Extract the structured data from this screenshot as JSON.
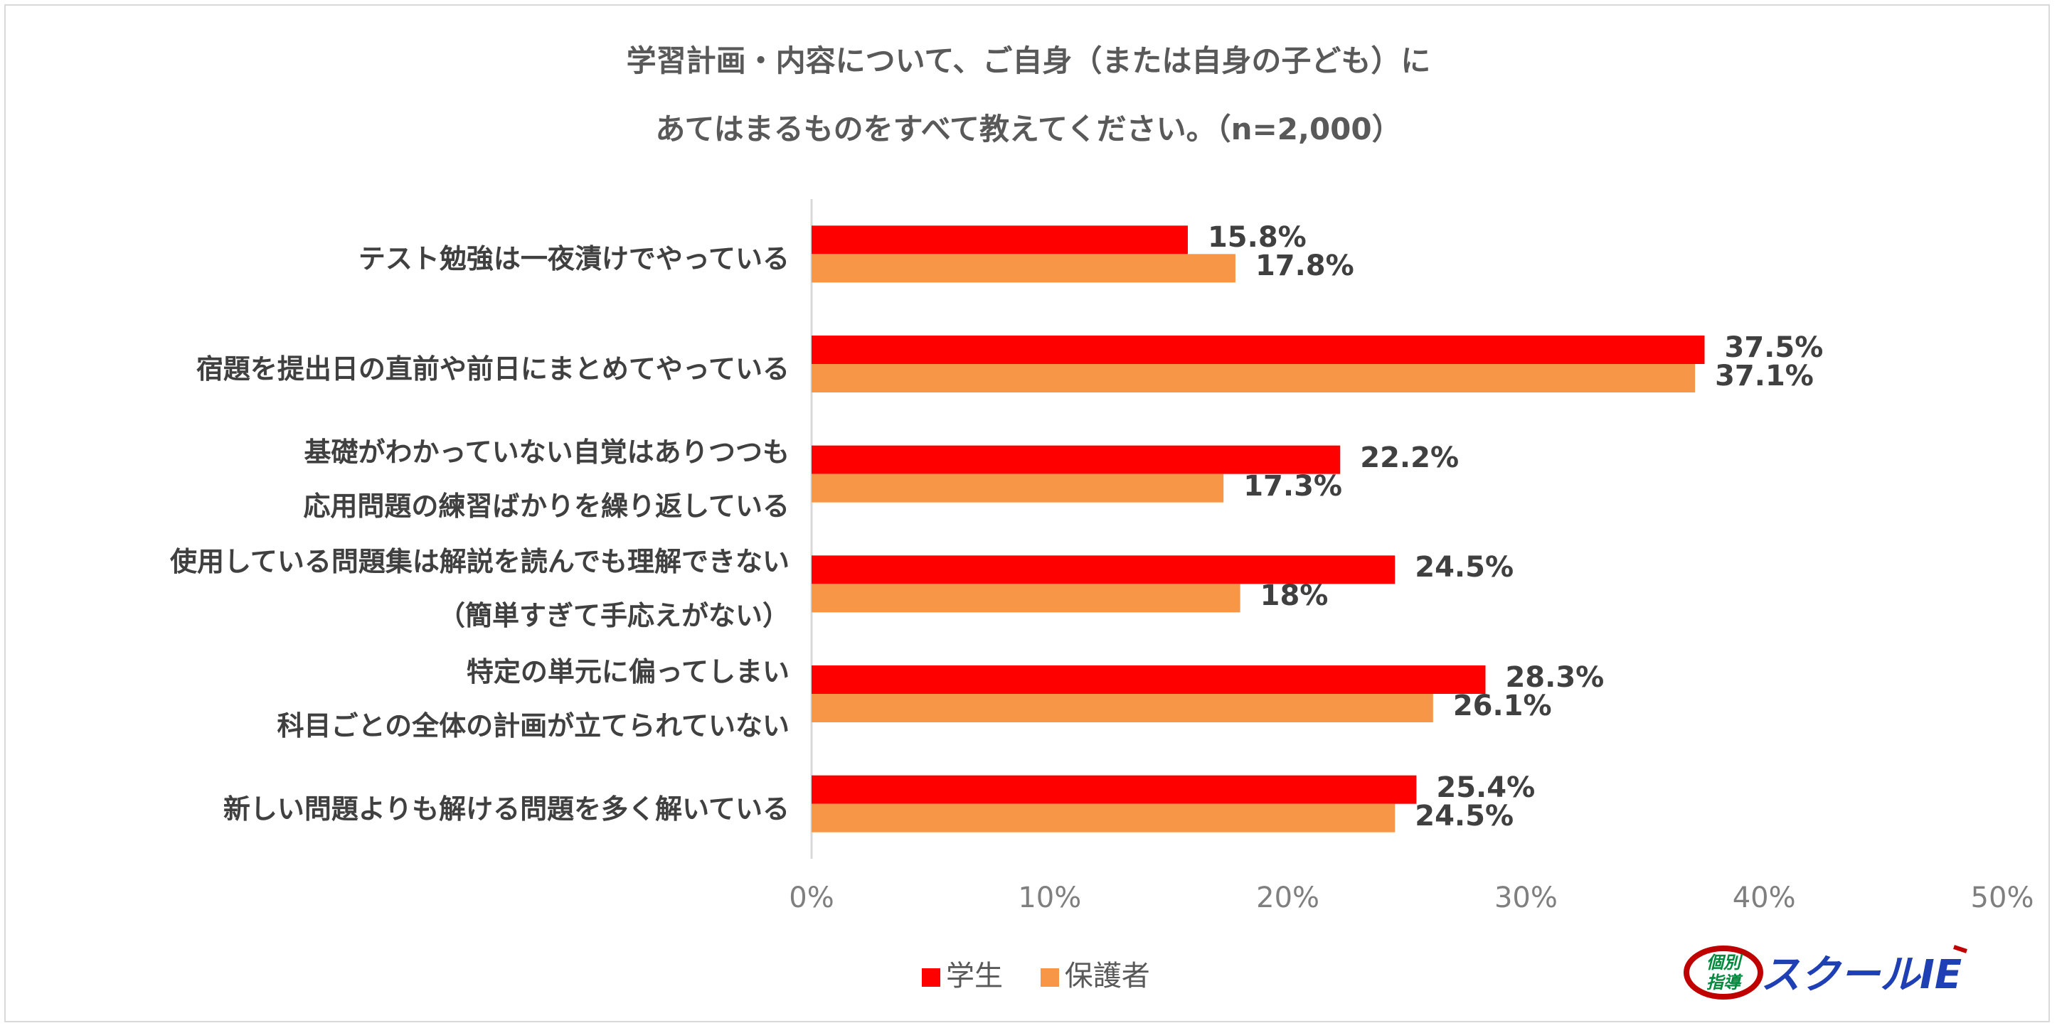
{
  "chart_data": {
    "type": "bar",
    "orientation": "horizontal",
    "title_line1": "学習計画・内容について、ご自身（または自身の子ども）に",
    "title_line2": "あてはまるものをすべて教えてください。（n=2,000）",
    "categories": [
      [
        "テスト勉強は一夜漬けでやっている"
      ],
      [
        "宿題を提出日の直前や前日にまとめてやっている"
      ],
      [
        "基礎がわかっていない自覚はありつつも",
        "応用問題の練習ばかりを繰り返している"
      ],
      [
        "使用している問題集は解説を読んでも理解できない",
        "（簡単すぎて手応えがない）"
      ],
      [
        "特定の単元に偏ってしまい",
        "科目ごとの全体の計画が立てられていない"
      ],
      [
        "新しい問題よりも解ける問題を多く解いている"
      ]
    ],
    "series": [
      {
        "name": "学生",
        "color": "#ff0000",
        "values": [
          15.8,
          37.5,
          22.2,
          24.5,
          28.3,
          25.4
        ],
        "labels": [
          "15.8%",
          "37.5%",
          "22.2%",
          "24.5%",
          "28.3%",
          "25.4%"
        ]
      },
      {
        "name": "保護者",
        "color": "#f79646",
        "values": [
          17.8,
          37.1,
          17.3,
          18,
          26.1,
          24.5
        ],
        "labels": [
          "17.8%",
          "37.1%",
          "17.3%",
          "18%",
          "26.1%",
          "24.5%"
        ]
      }
    ],
    "xlim": [
      0,
      50
    ],
    "xticks": [
      "0%",
      "10%",
      "20%",
      "30%",
      "40%",
      "50%"
    ],
    "grid": false,
    "legend_position": "bottom"
  },
  "logo": {
    "brand_top": "個別",
    "brand_bottom": "指導",
    "brand_text": "スクールIE"
  }
}
